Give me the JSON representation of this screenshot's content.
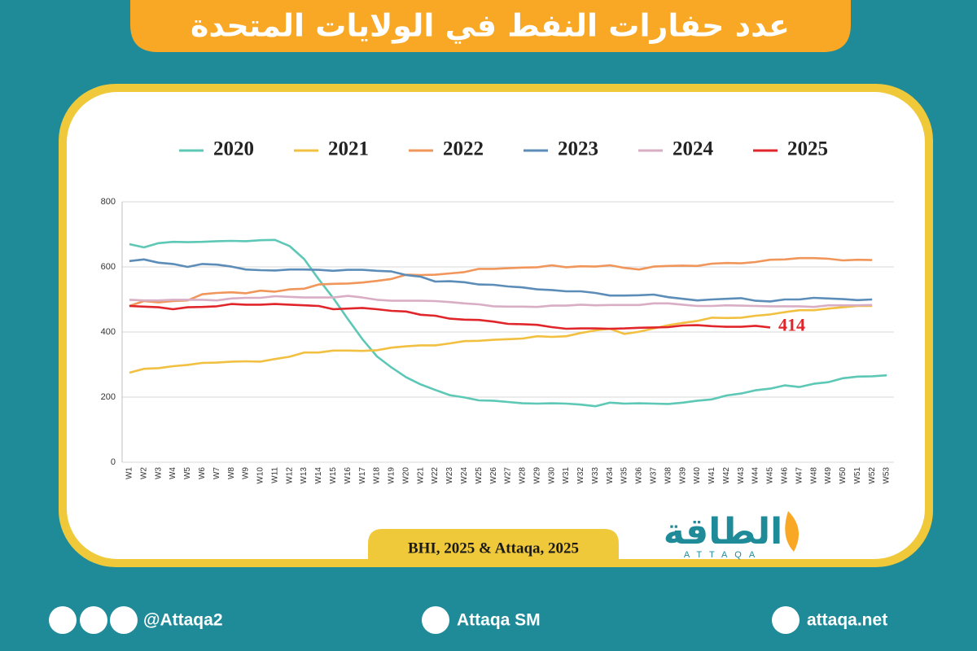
{
  "header": {
    "title": "عدد حفارات النفط في الولايات المتحدة"
  },
  "chart_data": {
    "type": "line",
    "categories": [
      "W1",
      "W2",
      "W3",
      "W4",
      "W5",
      "W6",
      "W7",
      "W8",
      "W9",
      "W10",
      "W11",
      "W12",
      "W13",
      "W14",
      "W15",
      "W16",
      "W17",
      "W18",
      "W19",
      "W20",
      "W21",
      "W22",
      "W23",
      "W24",
      "W25",
      "W26",
      "W27",
      "W28",
      "W29",
      "W30",
      "W31",
      "W32",
      "W33",
      "W34",
      "W35",
      "W36",
      "W37",
      "W38",
      "W39",
      "W40",
      "W41",
      "W42",
      "W43",
      "W44",
      "W45",
      "W46",
      "W47",
      "W48",
      "W49",
      "W50",
      "W51",
      "W52",
      "W53"
    ],
    "ylim": [
      0,
      800
    ],
    "yticks": [
      0,
      200,
      400,
      600,
      800
    ],
    "grid": true,
    "legend": "top",
    "series": [
      {
        "name": "2020",
        "color": "#5cc8b5",
        "values": [
          670,
          660,
          673,
          677,
          676,
          677,
          679,
          680,
          679,
          682,
          683,
          664,
          624,
          562,
          504,
          440,
          378,
          325,
          291,
          261,
          239,
          222,
          206,
          199,
          190,
          189,
          185,
          181,
          180,
          181,
          180,
          177,
          172,
          183,
          180,
          181,
          180,
          179,
          183,
          189,
          193,
          205,
          211,
          221,
          226,
          236,
          231,
          241,
          246,
          258,
          263,
          264,
          267
        ]
      },
      {
        "name": "2021",
        "color": "#f2c041",
        "values": [
          275,
          287,
          289,
          295,
          299,
          305,
          306,
          309,
          310,
          309,
          317,
          324,
          337,
          337,
          343,
          343,
          342,
          344,
          352,
          356,
          359,
          359,
          365,
          372,
          373,
          376,
          378,
          380,
          387,
          385,
          387,
          397,
          405,
          410,
          394,
          401,
          411,
          421,
          428,
          434,
          444,
          443,
          444,
          450,
          454,
          461,
          467,
          467,
          472,
          476,
          480,
          480,
          null
        ]
      },
      {
        "name": "2022",
        "color": "#f0965a",
        "values": [
          480,
          495,
          491,
          495,
          497,
          516,
          520,
          522,
          519,
          527,
          524,
          531,
          533,
          546,
          548,
          549,
          552,
          557,
          563,
          576,
          575,
          576,
          580,
          584,
          594,
          594,
          596,
          598,
          599,
          605,
          599,
          602,
          601,
          605,
          597,
          592,
          601,
          603,
          604,
          603,
          610,
          612,
          611,
          615,
          622,
          623,
          627,
          627,
          625,
          620,
          622,
          621,
          null
        ]
      },
      {
        "name": "2023",
        "color": "#5b8db8",
        "values": [
          618,
          623,
          613,
          609,
          600,
          609,
          607,
          601,
          592,
          590,
          589,
          592,
          592,
          591,
          588,
          591,
          591,
          588,
          586,
          575,
          570,
          555,
          556,
          553,
          546,
          545,
          540,
          537,
          531,
          529,
          525,
          525,
          520,
          512,
          512,
          513,
          515,
          507,
          502,
          497,
          500,
          502,
          504,
          496,
          494,
          500,
          500,
          505,
          503,
          501,
          498,
          500,
          null
        ]
      },
      {
        "name": "2024",
        "color": "#d9aec4",
        "values": [
          499,
          497,
          497,
          499,
          499,
          499,
          497,
          503,
          505,
          505,
          510,
          508,
          506,
          506,
          506,
          511,
          506,
          499,
          496,
          496,
          496,
          495,
          492,
          488,
          485,
          479,
          478,
          478,
          477,
          481,
          481,
          484,
          482,
          483,
          483,
          483,
          488,
          488,
          484,
          480,
          480,
          482,
          481,
          480,
          479,
          479,
          479,
          477,
          482,
          482,
          482,
          483,
          null
        ]
      },
      {
        "name": "2025",
        "color": "#e0262b",
        "values": [
          480,
          478,
          476,
          470,
          476,
          477,
          479,
          486,
          484,
          484,
          486,
          484,
          482,
          480,
          470,
          472,
          474,
          470,
          465,
          463,
          453,
          450,
          441,
          438,
          437,
          432,
          425,
          424,
          422,
          415,
          410,
          411,
          411,
          410,
          411,
          413,
          414,
          415,
          420,
          421,
          418,
          416,
          416,
          419,
          414,
          null,
          null,
          null,
          null,
          null,
          null,
          null,
          null
        ]
      }
    ]
  },
  "source": "BHI, 2025 & Attaqa, 2025",
  "logo": {
    "name": "الطاقة",
    "latin": "ATTAQA"
  },
  "footer": {
    "social": "@Attaqa2",
    "youtube": "Attaqa SM",
    "website": "attaqa.net"
  }
}
